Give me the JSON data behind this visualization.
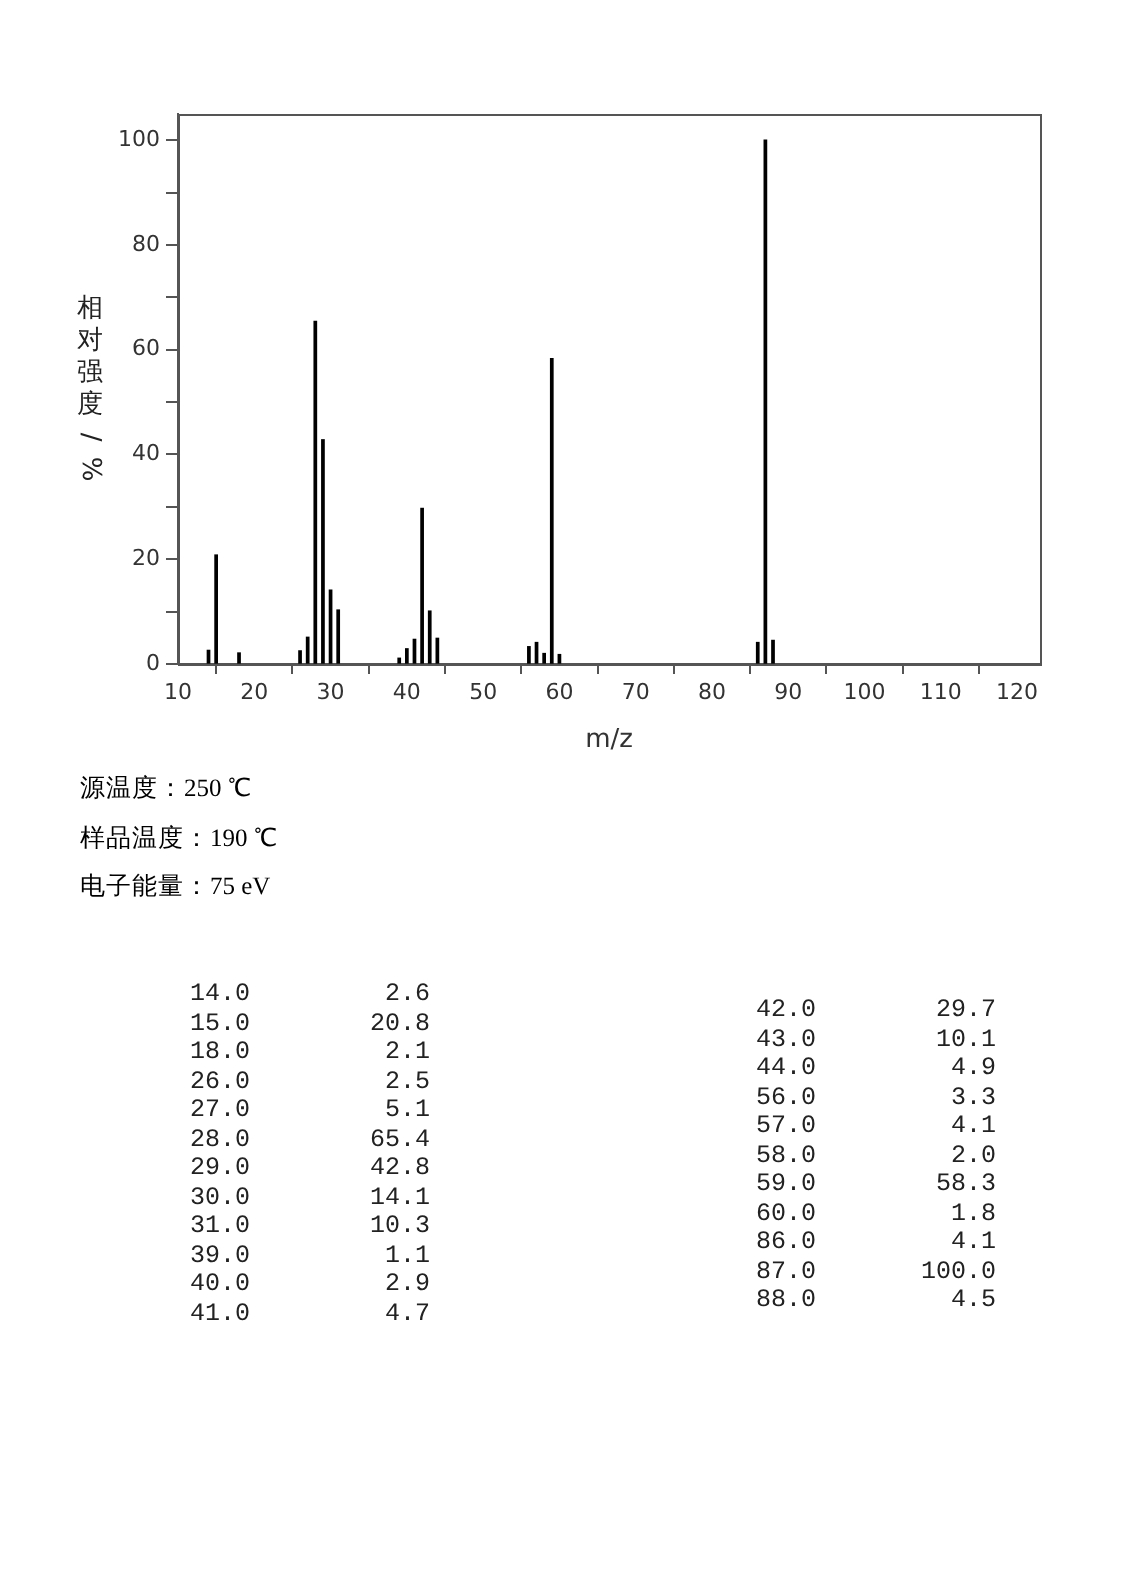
{
  "chart_data": [
    {
      "type": "bar",
      "xlabel": "m/z",
      "ylabel": "相对强度/%",
      "x": [
        14,
        15,
        18,
        26,
        27,
        28,
        29,
        30,
        31,
        39,
        40,
        41,
        42,
        43,
        44,
        56,
        57,
        58,
        59,
        60,
        86,
        87,
        88
      ],
      "values": [
        2.6,
        20.8,
        2.1,
        2.5,
        5.1,
        65.4,
        42.8,
        14.1,
        10.3,
        1.1,
        2.9,
        4.7,
        29.7,
        10.1,
        4.9,
        3.3,
        4.1,
        2.0,
        58.3,
        1.8,
        4.1,
        100.0,
        4.5
      ],
      "color": "#000000",
      "xlim": [
        10,
        123
      ],
      "ylim": [
        0,
        105
      ],
      "xticks": [
        10,
        20,
        30,
        40,
        50,
        60,
        70,
        80,
        90,
        100,
        110,
        120
      ],
      "yticks": [
        0,
        {
          "value": 10,
          "label": null
        },
        20,
        {
          "value": 30,
          "label": null
        },
        40,
        {
          "value": 50,
          "label": null
        },
        60,
        {
          "value": 70,
          "label": null
        },
        80,
        {
          "value": 90,
          "label": null
        },
        100
      ],
      "grid": false,
      "legend": false,
      "annotations": [
        "源温度：250 ℃",
        "样品温度：190 ℃",
        "电子能量：75 eV"
      ]
    },
    {
      "type": "other",
      "annotations": [
        "14.0         2.6",
        "15.0        20.8",
        "18.0         2.1",
        "26.0         2.5",
        "27.0         5.1",
        "28.0        65.4",
        "29.0        42.8",
        "30.0        14.1",
        "31.0        10.3",
        "39.0         1.1",
        "40.0         2.9",
        "41.0         4.7",
        "42.0        29.7",
        "43.0        10.1",
        "44.0         4.9",
        "56.0         3.3",
        "57.0         4.1",
        "58.0         2.0",
        "59.0        58.3",
        "60.0         1.8",
        "86.0         4.1",
        "87.0       100.0",
        "88.0         4.5"
      ]
    }
  ]
}
